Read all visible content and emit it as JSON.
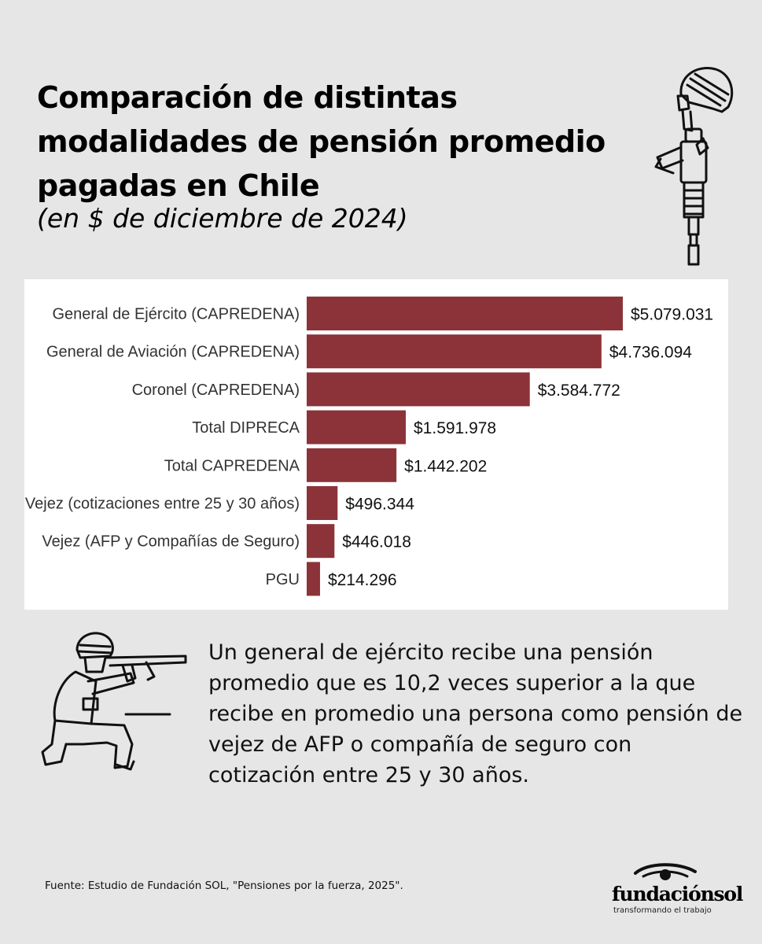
{
  "header": {
    "title": "Comparación de distintas modalidades de pensión promedio pagadas en Chile",
    "subtitle": "(en $ de diciembre de 2024)"
  },
  "chart_data": {
    "type": "bar",
    "orientation": "horizontal",
    "title": "Comparación de distintas modalidades de pensión promedio pagadas en Chile",
    "subtitle": "(en $ de diciembre de 2024)",
    "categories": [
      "General de Ejército (CAPREDENA)",
      "General de Aviación (CAPREDENA)",
      "Coronel (CAPREDENA)",
      "Total DIPRECA",
      "Total CAPREDENA",
      "Vejez (cotizaciones entre 25 y 30 años)",
      "Vejez (AFP y Compañías de Seguro)",
      "PGU"
    ],
    "values": [
      5079031,
      4736094,
      3584772,
      1591978,
      1442202,
      496344,
      446018,
      214296
    ],
    "value_labels": [
      "$5.079.031",
      "$4.736.094",
      "$3.584.772",
      "$1.591.978",
      "$1.442.202",
      "$496.344",
      "$446.018",
      "$214.296"
    ],
    "xlim": [
      0,
      5079031
    ],
    "bar_color": "#8b3339",
    "grid": false
  },
  "caption": {
    "text": "Un general de ejército recibe una pensión promedio que es 10,2 veces superior a la que recibe en promedio una persona como pensión de vejez de AFP o compañía de seguro con cotización entre 25 y 30 años."
  },
  "footer": {
    "source": "Fuente: Estudio de Fundación SOL, \"Pensiones por la fuerza, 2025\".",
    "logo_name": "fundaciónsol",
    "logo_tagline": "transformando el trabajo"
  },
  "icons": {
    "soldier_top": "soldier-with-rifle-icon",
    "soldier_bottom": "kneeling-soldier-aiming-icon",
    "logo_eye": "eye-icon"
  }
}
